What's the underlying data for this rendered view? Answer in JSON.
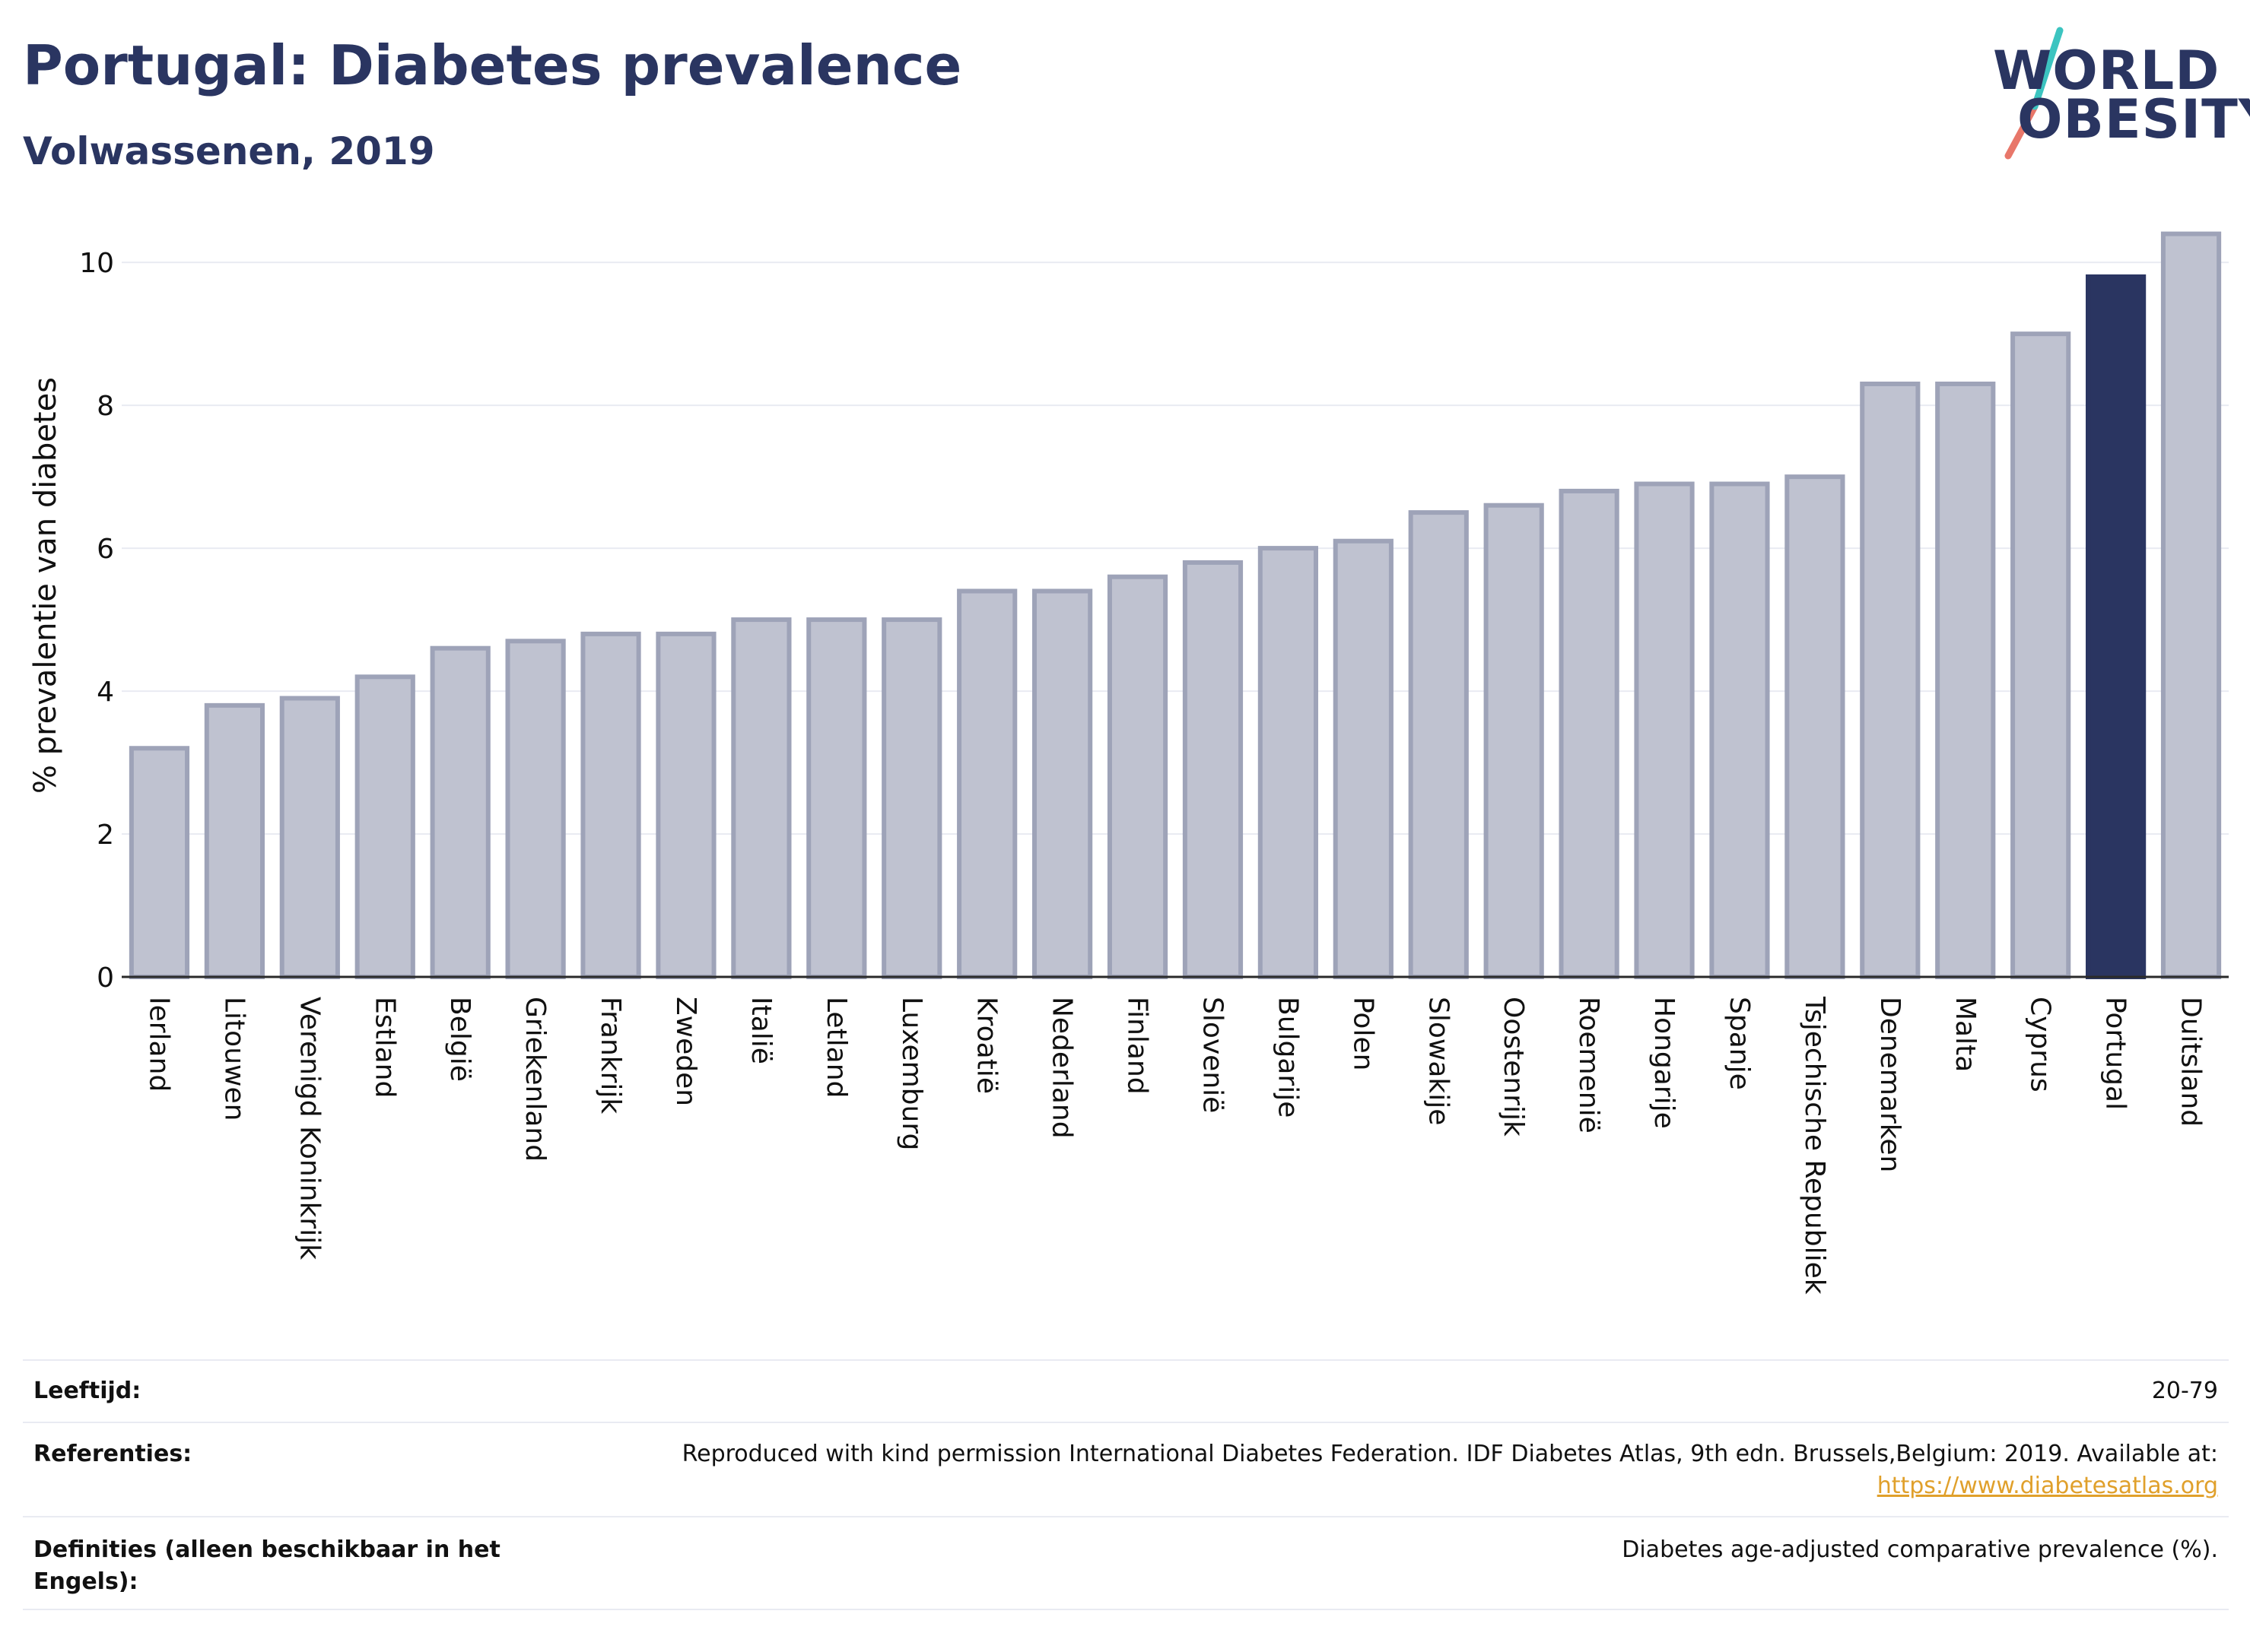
{
  "header": {
    "title": "Portugal: Diabetes prevalence",
    "subtitle": "Volwassenen, 2019"
  },
  "logo": {
    "line1": "WORLD",
    "line2": "OBESITY"
  },
  "colors": {
    "bar": "#bfc2d0",
    "bar_border": "#9ea3b8",
    "highlight": "#2a3561",
    "gridline": "#e9ebf2"
  },
  "chart_data": {
    "type": "bar",
    "ylabel": "% prevalentie van diabetes",
    "ylim": [
      0,
      10.8
    ],
    "yticks": [
      0,
      2,
      4,
      6,
      8,
      10
    ],
    "grid": true,
    "highlight": "Portugal",
    "categories": [
      "Ierland",
      "Litouwen",
      "Verenigd Koninkrijk",
      "Estland",
      "België",
      "Griekenland",
      "Frankrijk",
      "Zweden",
      "Italië",
      "Letland",
      "Luxemburg",
      "Kroatië",
      "Nederland",
      "Finland",
      "Slovenië",
      "Bulgarije",
      "Polen",
      "Slowakije",
      "Oostenrijk",
      "Roemenië",
      "Hongarije",
      "Spanje",
      "Tsjechische Republiek",
      "Denemarken",
      "Malta",
      "Cyprus",
      "Portugal",
      "Duitsland"
    ],
    "values": [
      3.2,
      3.8,
      3.9,
      4.2,
      4.6,
      4.7,
      4.8,
      4.8,
      5.0,
      5.0,
      5.0,
      5.4,
      5.4,
      5.6,
      5.8,
      6.0,
      6.1,
      6.5,
      6.6,
      6.8,
      6.9,
      6.9,
      7.0,
      8.3,
      8.3,
      9.0,
      9.8,
      10.4
    ]
  },
  "meta": {
    "age_label": "Leeftijd:",
    "age_value": "20-79",
    "ref_label": "Referenties:",
    "ref_text": "Reproduced with kind permission International Diabetes Federation. IDF Diabetes Atlas, 9th edn. Brussels,Belgium: 2019. Available at:",
    "ref_link": "https://www.diabetesatlas.org",
    "def_label": "Definities (alleen beschikbaar in het Engels):",
    "def_value": "Diabetes age-adjusted comparative prevalence (%)."
  }
}
